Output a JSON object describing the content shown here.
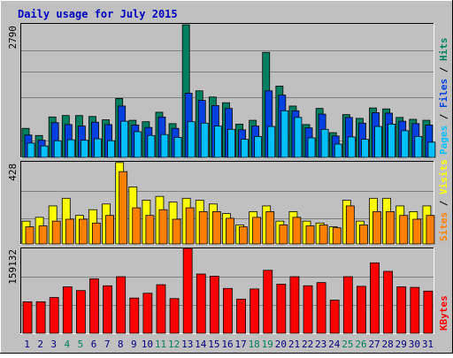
{
  "title": "Daily usage for July 2015",
  "colors": {
    "background": "#C0C0C0",
    "title": "#0000C0",
    "pages": "#00C0FF",
    "files": "#0040E0",
    "hits": "#008060",
    "visits": "#FFFF00",
    "sites": "#FF8000",
    "kbytes": "#FF0000",
    "weekend": "#008060",
    "weekday": "#000080"
  },
  "chart_data": [
    {
      "type": "bar",
      "name": "hits-files-pages",
      "ymax_label": "2790",
      "ymax": 2790,
      "legend": [
        "Pages",
        "Files",
        "Hits"
      ],
      "categories": [
        "1",
        "2",
        "3",
        "4",
        "5",
        "6",
        "7",
        "8",
        "9",
        "10",
        "11",
        "12",
        "13",
        "14",
        "15",
        "16",
        "17",
        "18",
        "19",
        "20",
        "21",
        "22",
        "23",
        "24",
        "25",
        "26",
        "27",
        "28",
        "29",
        "30",
        "31"
      ],
      "series": [
        {
          "name": "Hits",
          "values": [
            610,
            460,
            850,
            880,
            880,
            860,
            790,
            1240,
            780,
            750,
            950,
            710,
            2790,
            1400,
            1270,
            1150,
            700,
            780,
            2210,
            1500,
            1080,
            690,
            1030,
            520,
            900,
            820,
            1040,
            1020,
            840,
            800,
            780
          ]
        },
        {
          "name": "Files",
          "values": [
            470,
            360,
            730,
            690,
            660,
            740,
            690,
            1080,
            680,
            630,
            850,
            610,
            1350,
            1200,
            1090,
            1030,
            580,
            660,
            1400,
            1310,
            980,
            620,
            910,
            450,
            840,
            720,
            940,
            930,
            760,
            710,
            680
          ]
        },
        {
          "name": "Pages",
          "values": [
            300,
            240,
            350,
            370,
            360,
            390,
            350,
            760,
            540,
            460,
            480,
            420,
            750,
            720,
            660,
            590,
            380,
            440,
            650,
            980,
            840,
            410,
            590,
            280,
            430,
            380,
            650,
            700,
            560,
            440,
            320
          ]
        }
      ]
    },
    {
      "type": "bar",
      "name": "visits-sites",
      "ymax_label": "428",
      "ymax": 428,
      "legend": [
        "Sites",
        "Visits"
      ],
      "categories": [
        "1",
        "2",
        "3",
        "4",
        "5",
        "6",
        "7",
        "8",
        "9",
        "10",
        "11",
        "12",
        "13",
        "14",
        "15",
        "16",
        "17",
        "18",
        "19",
        "20",
        "21",
        "22",
        "23",
        "24",
        "25",
        "26",
        "27",
        "28",
        "29",
        "30",
        "31"
      ],
      "series": [
        {
          "name": "Visits",
          "values": [
            120,
            140,
            200,
            240,
            150,
            180,
            210,
            428,
            300,
            230,
            250,
            220,
            240,
            230,
            210,
            160,
            100,
            170,
            200,
            120,
            170,
            120,
            110,
            90,
            230,
            120,
            240,
            240,
            200,
            170,
            200
          ]
        },
        {
          "name": "Sites",
          "values": [
            90,
            95,
            120,
            130,
            130,
            110,
            150,
            380,
            190,
            150,
            180,
            130,
            190,
            170,
            170,
            135,
            90,
            140,
            170,
            100,
            140,
            95,
            100,
            85,
            200,
            100,
            170,
            170,
            150,
            130,
            150
          ]
        }
      ]
    },
    {
      "type": "bar",
      "name": "kbytes",
      "ymax_label": "159132",
      "ymax": 159132,
      "legend": [
        "KBytes"
      ],
      "categories": [
        "1",
        "2",
        "3",
        "4",
        "5",
        "6",
        "7",
        "8",
        "9",
        "10",
        "11",
        "12",
        "13",
        "14",
        "15",
        "16",
        "17",
        "18",
        "19",
        "20",
        "21",
        "22",
        "23",
        "24",
        "25",
        "26",
        "27",
        "28",
        "29",
        "30",
        "31"
      ],
      "series": [
        {
          "name": "KBytes",
          "values": [
            59000,
            59000,
            67000,
            87000,
            80000,
            102000,
            89000,
            106000,
            66000,
            75000,
            91000,
            65000,
            159132,
            111000,
            107000,
            84000,
            64000,
            83000,
            118000,
            92000,
            106000,
            89000,
            95000,
            62000,
            106000,
            88000,
            132000,
            116000,
            87000,
            86000,
            79000
          ]
        }
      ]
    }
  ],
  "weekend_days": [
    4,
    5,
    11,
    12,
    18,
    19,
    25,
    26
  ]
}
